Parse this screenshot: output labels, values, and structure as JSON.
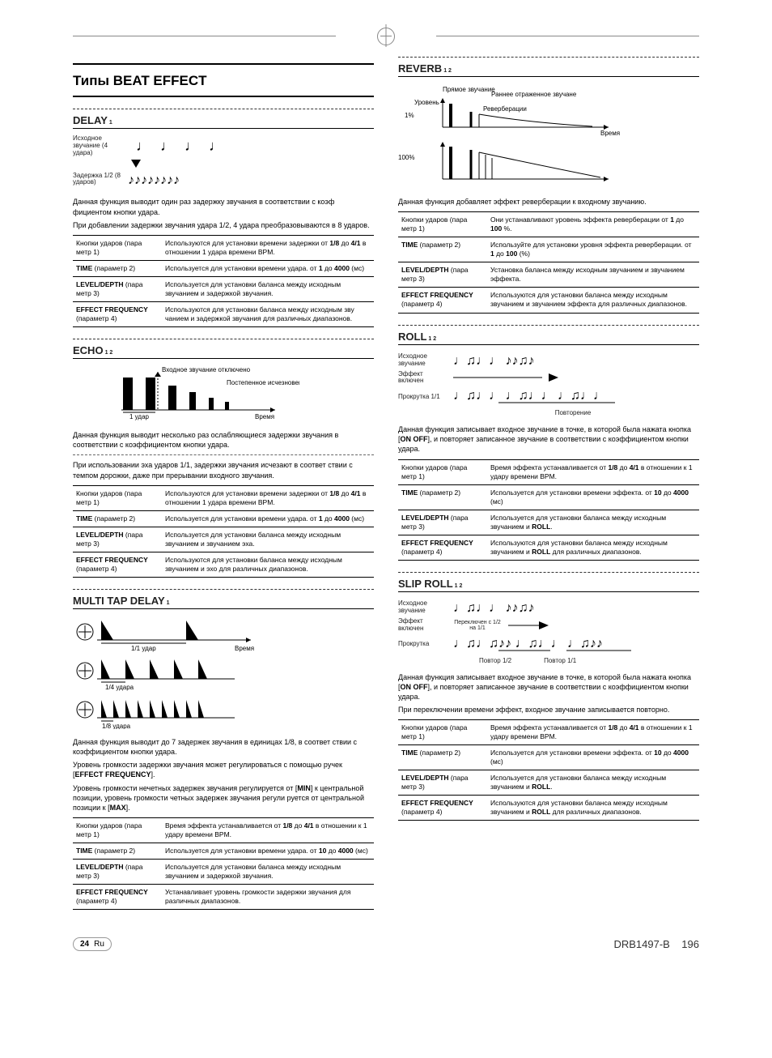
{
  "page": {
    "number": "24",
    "lang": "Ru",
    "doc_code": "DRB1497-B",
    "page_right": "196"
  },
  "mainHeading": "Типы BEAT EFFECT",
  "delay": {
    "title": "DELAY",
    "sup": "1",
    "diag_l1": "Исходное звучание (4 удара)",
    "diag_l2": "Задержка 1/2 (8 ударов)",
    "desc1": "Данная функция выводит один раз задержку звучания в соответствии с коэф фициентом кнопки удара.",
    "desc2": "При добавлении задержки звучания удара 1/2, 4 удара преобразовываются в 8 ударов.",
    "rows": [
      [
        "Кнопки ударов (пара метр 1)",
        "Используются для установки времени задержки от <b>1/8</b> до <b>4/1</b> в отношении 1 удара времени BPM."
      ],
      [
        "<b>TIME</b> (параметр 2)",
        "Используется для установки времени удара. от <b>1</b> до <b>4000</b> (мс)"
      ],
      [
        "<b>LEVEL/DEPTH</b> (пара метр 3)",
        "Используется для установки баланса между исходным звучанием и задержкой звучания."
      ],
      [
        "<b>EFFECT FREQUENCY</b> (параметр 4)",
        "Используются для установки баланса между исходным зву чанием и задержкой звучания для различных диапазонов."
      ]
    ]
  },
  "echo": {
    "title": "ECHO",
    "sup": "1 2",
    "diag_a": "Входное звучание отключено",
    "diag_b": "Постепенное исчезновение",
    "diag_c": "1 удар",
    "diag_d": "Время",
    "desc1": "Данная функция выводит несколько раз ослабляющиеся задержки звучания в соответствии с коэффициентом кнопки удара.",
    "desc2": "При использовании эха ударов 1/1, задержки звучания исчезают в соответ ствии с темпом дорожки, даже при прерывании входного звучания.",
    "rows": [
      [
        "Кнопки ударов (пара метр 1)",
        "Используются для установки времени задержки от <b>1/8</b> до <b>4/1</b> в отношении 1 удара времени BPM."
      ],
      [
        "<b>TIME</b> (параметр 2)",
        "Используется для установки времени удара. от <b>1</b> до <b>4000</b> (мс)"
      ],
      [
        "<b>LEVEL/DEPTH</b> (пара метр 3)",
        "Используется для установки баланса между исходным звучанием и звучанием эха."
      ],
      [
        "<b>EFFECT FREQUENCY</b> (параметр 4)",
        "Используются для установки баланса между исходным звучанием и эхо для различных диапазонов."
      ]
    ]
  },
  "multitap": {
    "title": "MULTI TAP DELAY",
    "sup": "1",
    "diag_a": "1/1 удар",
    "diag_b": "Время",
    "diag_c": "1/4 удара",
    "diag_d": "1/8 удара",
    "desc1": "Данная функция выводит до 7 задержек звучания в единицах 1/8, в соответ ствии с коэффициентом кнопки удара.",
    "desc2": "Уровень громкости задержки звучания может регулироваться с помощью ручек [<b>EFFECT FREQUENCY</b>].",
    "desc3": "Уровень громкости нечетных задержек звучания регулируется от [<b>MIN</b>] к центральной позиции, уровень громкости четных задержек звучания регули руется от центральной позиции к [<b>MAX</b>].",
    "rows": [
      [
        "Кнопки ударов (пара метр 1)",
        "Время эффекта устанавливается от <b>1/8</b> до <b>4/1</b> в отношении к 1 удару времени BPM."
      ],
      [
        "<b>TIME</b> (параметр 2)",
        "Используется для установки времени удара. от <b>10</b> до <b>4000</b> (мс)"
      ],
      [
        "<b>LEVEL/DEPTH</b> (пара метр 3)",
        "Используется для установки баланса между исходным звучанием и задержкой звучания."
      ],
      [
        "<b>EFFECT FREQUENCY</b> (параметр 4)",
        "Устанавливает уровень громкости задержки звучания для различных диапазонов."
      ]
    ]
  },
  "reverb": {
    "title": "REVERB",
    "sup": "1 2",
    "diag_a": "Прямое звучание",
    "diag_b": "Раннее отраженное звучане",
    "diag_c": "Уровень",
    "diag_d": "Реверберации",
    "diag_e": "Время",
    "pct1": "1%",
    "pct100": "100%",
    "desc1": "Данная функция добавляет эффект реверберации к входному звучанию.",
    "rows": [
      [
        "Кнопки ударов (пара метр 1)",
        "Они устанавливают уровень эффекта реверберации от <b>1</b> до <b>100</b> %."
      ],
      [
        "<b>TIME</b> (параметр 2)",
        "Используйте для установки уровня эффекта реверберации. от <b>1</b> до <b>100</b> (%)"
      ],
      [
        "<b>LEVEL/DEPTH</b> (пара метр 3)",
        "Установка баланса между исходным звучанием и звучанием эффекта."
      ],
      [
        "<b>EFFECT FREQUENCY</b> (параметр 4)",
        "Используются для установки баланса между исходным звучанием и звучанием эффекта для различных диапазонов."
      ]
    ]
  },
  "roll": {
    "title": "ROLL",
    "sup": "1 2",
    "diag_a": "Исходное звучание",
    "diag_b": "Эффект включен",
    "diag_c": "Прокрутка 1/1",
    "diag_d": "Повторение",
    "desc1": "Данная функция записывает входное звучание в точке, в которой была нажата кнопка [<b>ON OFF</b>], и повторяет записанное звучание в соответствии с коэффициентом кнопки удара.",
    "rows": [
      [
        "Кнопки ударов (пара метр 1)",
        "Время эффекта устанавливается от <b>1/8</b> до <b>4/1</b> в отношении к 1 удару времени BPM."
      ],
      [
        "<b>TIME</b> (параметр 2)",
        "Используется для установки времени эффекта. от <b>10</b> до <b>4000</b> (мс)"
      ],
      [
        "<b>LEVEL/DEPTH</b> (пара метр 3)",
        "Используется для установки баланса между исходным звучанием и <b>ROLL</b>."
      ],
      [
        "<b>EFFECT FREQUENCY</b> (параметр 4)",
        "Используются для установки баланса между исходным звучанием и <b>ROLL</b> для различных диапазонов."
      ]
    ]
  },
  "sliproll": {
    "title": "SLIP ROLL",
    "sup": "1 2",
    "diag_a": "Исходное звучание",
    "diag_b": "Эффект включен",
    "diag_c": "Переключен с 1/2 на 1/1",
    "diag_d": "Прокрутка",
    "diag_e": "Повтор 1/2",
    "diag_f": "Повтор 1/1",
    "desc1": "Данная функция записывает входное звучание в точке, в которой была нажата кнопка [<b>ON OFF</b>], и повторяет записанное звучание в соответствии с коэффициентом кнопки удара.",
    "desc2": "При переключении времени эффект, входное звучание записывается повторно.",
    "rows": [
      [
        "Кнопки ударов (пара метр 1)",
        "Время эффекта устанавливается от <b>1/8</b> до <b>4/1</b> в отношении к 1 удару времени BPM."
      ],
      [
        "<b>TIME</b> (параметр 2)",
        "Используется для установки времени эффекта. от <b>10</b> до <b>4000</b> (мс)"
      ],
      [
        "<b>LEVEL/DEPTH</b> (пара метр 3)",
        "Используется для установки баланса между исходным звучанием и <b>ROLL</b>."
      ],
      [
        "<b>EFFECT FREQUENCY</b> (параметр 4)",
        "Используются для установки баланса между исходным звучанием и <b>ROLL</b> для различных диапазонов."
      ]
    ]
  }
}
